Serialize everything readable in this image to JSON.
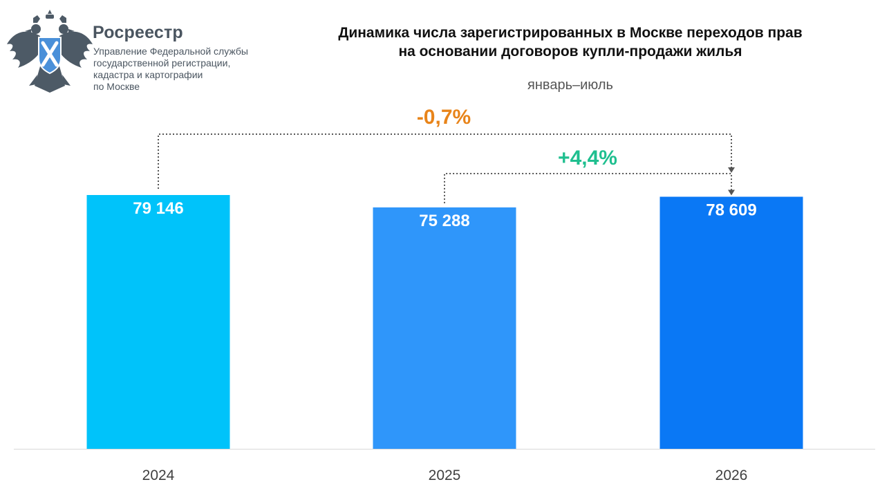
{
  "header": {
    "brand_name": "Росреестр",
    "brand_lines": [
      "Управление Федеральной службы",
      "государственной регистрации,",
      "кадастра и картографии",
      "по Москве"
    ],
    "logo_icon": "double-headed-eagle-emblem"
  },
  "chart_data": {
    "type": "bar",
    "title_lines": [
      "Динамика числа зарегистрированных в Москве переходов прав",
      "на основании договоров купли-продажи жилья"
    ],
    "subtitle": "январь–июль",
    "categories": [
      "2024",
      "2025",
      "2026"
    ],
    "values": [
      79146,
      75288,
      78609
    ],
    "value_labels": [
      "79 146",
      "75 288",
      "78 609"
    ],
    "colors": [
      "#00c3fa",
      "#2f96fa",
      "#0a78f5"
    ],
    "ylim": [
      0,
      80000
    ],
    "xlabel": "",
    "ylabel": "",
    "grid": false,
    "annotations": [
      {
        "text": "-0,7%",
        "from": "2024",
        "to": "2026",
        "color": "#e8841a"
      },
      {
        "text": "+4,4%",
        "from": "2025",
        "to": "2026",
        "color": "#1fbf8f"
      }
    ]
  }
}
